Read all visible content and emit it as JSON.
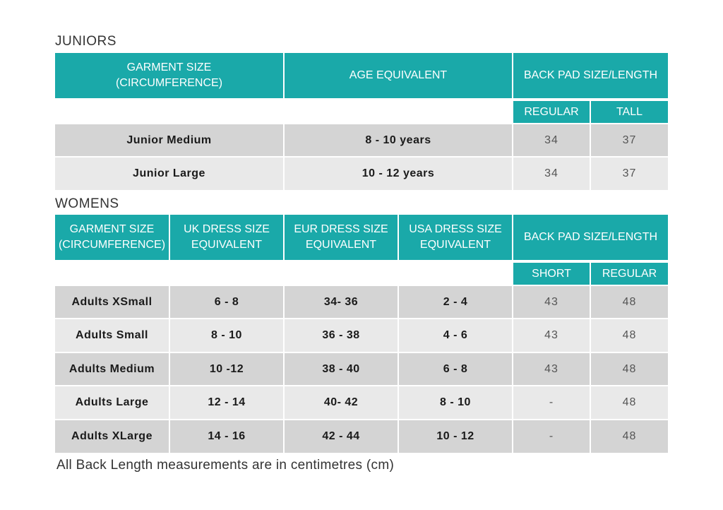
{
  "juniors": {
    "title": "JUNIORS",
    "headers": {
      "garment": "GARMENT SIZE\n(CIRCUMFERENCE)",
      "age": "AGE EQUIVALENT",
      "backpad": "BACK PAD SIZE/LENGTH",
      "regular": "REGULAR",
      "tall": "TALL"
    },
    "rows": [
      {
        "size": "Junior Medium",
        "age": "8 - 10 years",
        "regular": "34",
        "tall": "37"
      },
      {
        "size": "Junior Large",
        "age": "10 - 12 years",
        "regular": "34",
        "tall": "37"
      }
    ]
  },
  "womens": {
    "title": "WOMENS",
    "headers": {
      "garment": "GARMENT SIZE\n(CIRCUMFERENCE)",
      "uk": "UK DRESS SIZE\nEQUIVALENT",
      "eur": "EUR DRESS SIZE\nEQUIVALENT",
      "usa": "USA DRESS SIZE\nEQUIVALENT",
      "backpad": "BACK PAD SIZE/LENGTH",
      "short": "SHORT",
      "regular": "REGULAR"
    },
    "rows": [
      {
        "size": "Adults XSmall",
        "uk": "6 - 8",
        "eur": "34- 36",
        "usa": "2 - 4",
        "short": "43",
        "regular": "48"
      },
      {
        "size": "Adults Small",
        "uk": "8 - 10",
        "eur": "36 - 38",
        "usa": "4 - 6",
        "short": "43",
        "regular": "48"
      },
      {
        "size": "Adults Medium",
        "uk": "10 -12",
        "eur": "38 - 40",
        "usa": "6 - 8",
        "short": "43",
        "regular": "48"
      },
      {
        "size": "Adults Large",
        "uk": "12 - 14",
        "eur": "40- 42",
        "usa": "8 - 10",
        "short": "-",
        "regular": "48"
      },
      {
        "size": "Adults XLarge",
        "uk": "14 - 16",
        "eur": "42 - 44",
        "usa": "10 - 12",
        "short": "-",
        "regular": "48"
      }
    ]
  },
  "note": "All Back Length measurements are in centimetres (cm)"
}
